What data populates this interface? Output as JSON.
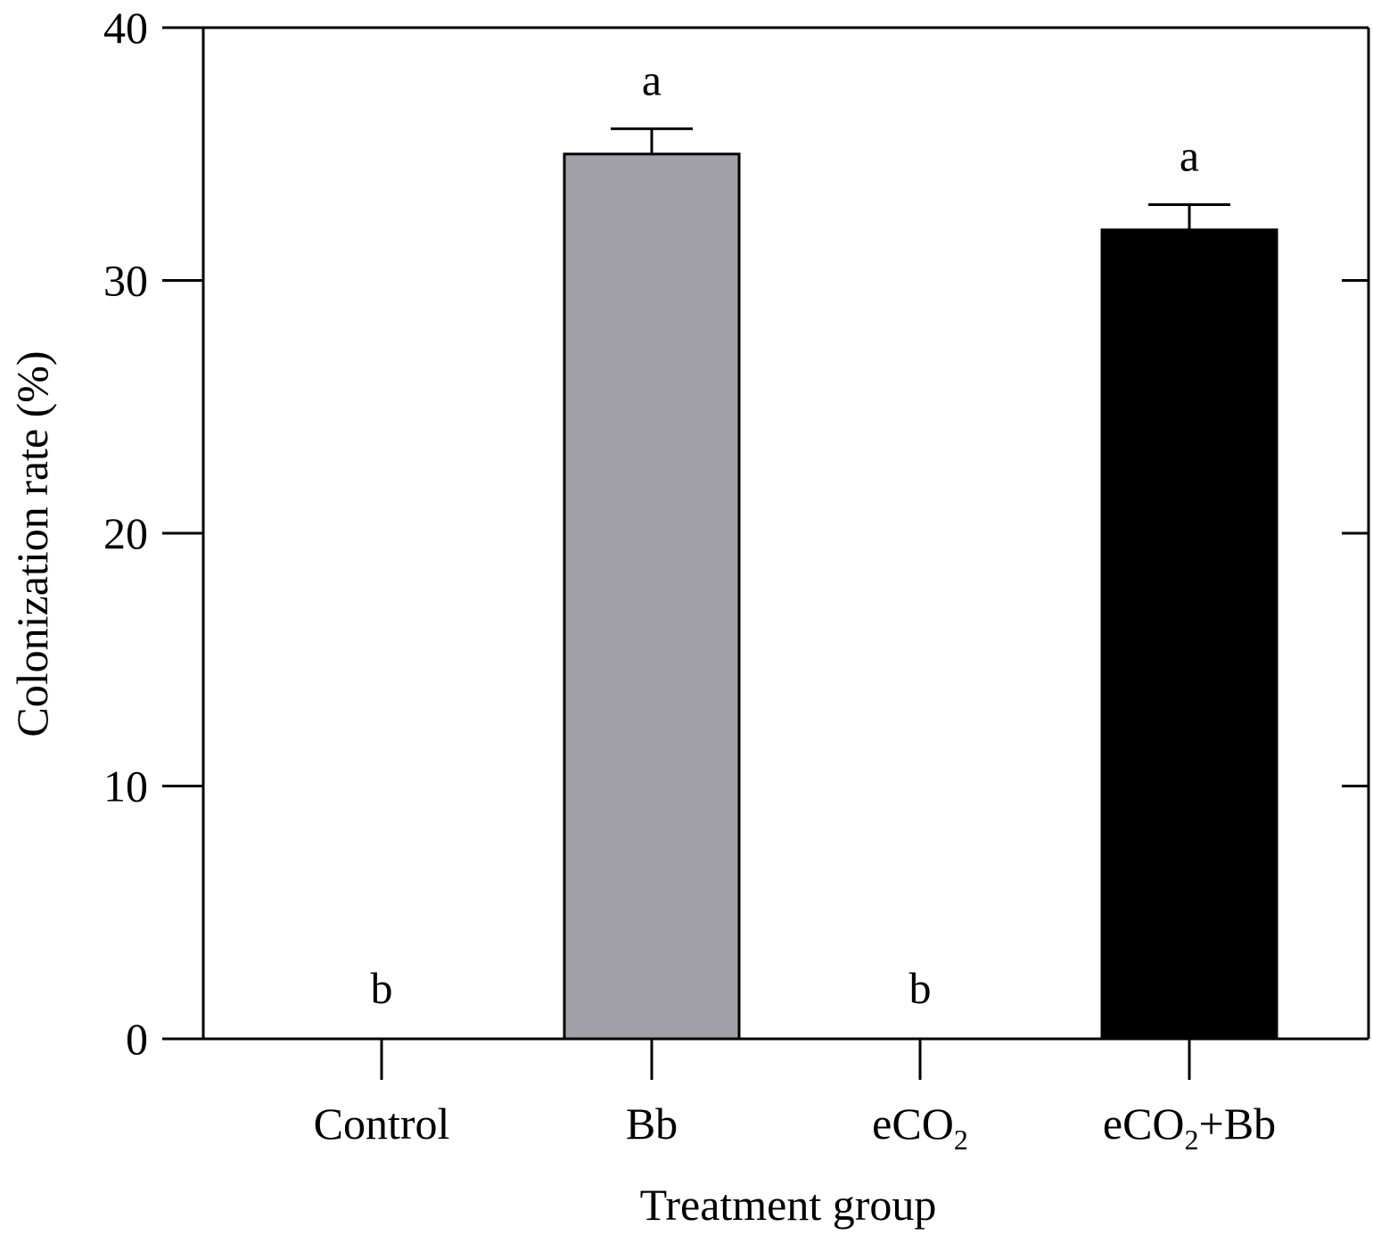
{
  "chart_data": {
    "type": "bar",
    "title": "",
    "xlabel": "Treatment group",
    "ylabel": "Colonization rate (%)",
    "ylim": [
      0,
      40
    ],
    "yticks": [
      "0",
      "10",
      "20",
      "30",
      "40"
    ],
    "categories": [
      {
        "base": "Control",
        "sub": "",
        "rest": ""
      },
      {
        "base": "Bb",
        "sub": "",
        "rest": ""
      },
      {
        "base": "eCO",
        "sub": "2",
        "rest": ""
      },
      {
        "base": "eCO",
        "sub": "2",
        "rest": "+Bb"
      }
    ],
    "values": [
      0,
      35,
      0,
      32
    ],
    "errors": [
      0,
      1.0,
      0,
      1.0
    ],
    "significance": [
      "b",
      "a",
      "b",
      "a"
    ],
    "bar_colors": [
      "#ffffff",
      "#a19fa7",
      "#ffffff",
      "#000000"
    ],
    "grid": false,
    "legend": "none"
  }
}
